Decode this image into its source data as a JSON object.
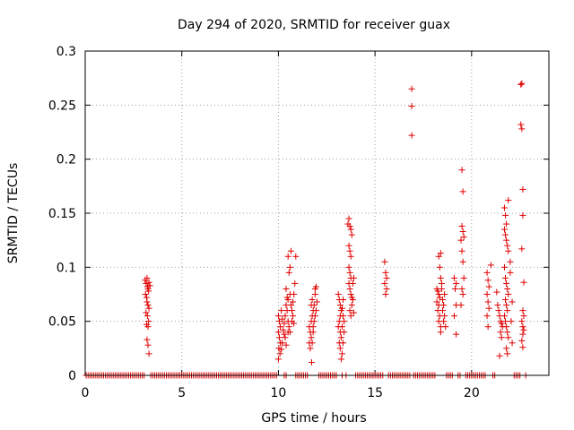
{
  "chart_data": {
    "type": "scatter",
    "title": "Day 294 of 2020, SRMTID for receiver guax",
    "xlabel": "GPS time / hours",
    "ylabel": "SRMTID / TECUs",
    "xlim": [
      0,
      24
    ],
    "ylim": [
      0,
      0.3
    ],
    "xticks": [
      0,
      5,
      10,
      15,
      20
    ],
    "xtick_labels": [
      "0",
      "5",
      "10",
      "15",
      "20"
    ],
    "yticks": [
      0,
      0.05,
      0.1,
      0.15,
      0.2,
      0.25,
      0.3
    ],
    "ytick_labels": [
      "0",
      "0.05",
      "0.1",
      "0.15",
      "0.2",
      "0.25",
      "0.3"
    ],
    "grid": true,
    "marker": "+",
    "color": "#e00000",
    "series": [
      {
        "name": "SRMTID",
        "points": [
          [
            3.1,
            0.088
          ],
          [
            3.15,
            0.085
          ],
          [
            3.2,
            0.09
          ],
          [
            3.22,
            0.082
          ],
          [
            3.25,
            0.08
          ],
          [
            3.3,
            0.086
          ],
          [
            3.35,
            0.083
          ],
          [
            3.12,
            0.075
          ],
          [
            3.18,
            0.072
          ],
          [
            3.28,
            0.078
          ],
          [
            3.2,
            0.068
          ],
          [
            3.25,
            0.065
          ],
          [
            3.3,
            0.062
          ],
          [
            3.15,
            0.058
          ],
          [
            3.22,
            0.055
          ],
          [
            3.28,
            0.05
          ],
          [
            3.18,
            0.047
          ],
          [
            3.25,
            0.045
          ],
          [
            3.2,
            0.033
          ],
          [
            3.25,
            0.028
          ],
          [
            3.3,
            0.02
          ],
          [
            10.0,
            0.055
          ],
          [
            10.05,
            0.05
          ],
          [
            10.1,
            0.045
          ],
          [
            10.0,
            0.04
          ],
          [
            10.05,
            0.035
          ],
          [
            10.1,
            0.03
          ],
          [
            10.02,
            0.025
          ],
          [
            10.08,
            0.02
          ],
          [
            10.0,
            0.015
          ],
          [
            10.15,
            0.06
          ],
          [
            10.2,
            0.052
          ],
          [
            10.25,
            0.042
          ],
          [
            10.3,
            0.038
          ],
          [
            10.2,
            0.03
          ],
          [
            10.15,
            0.024
          ],
          [
            10.3,
            0.048
          ],
          [
            10.35,
            0.055
          ],
          [
            10.4,
            0.065
          ],
          [
            10.45,
            0.072
          ],
          [
            10.4,
            0.08
          ],
          [
            10.5,
            0.07
          ],
          [
            10.45,
            0.06
          ],
          [
            10.5,
            0.05
          ],
          [
            10.55,
            0.045
          ],
          [
            10.35,
            0.035
          ],
          [
            10.4,
            0.028
          ],
          [
            10.5,
            0.04
          ],
          [
            10.55,
            0.095
          ],
          [
            10.6,
            0.1
          ],
          [
            10.5,
            0.11
          ],
          [
            10.65,
            0.115
          ],
          [
            10.6,
            0.075
          ],
          [
            10.65,
            0.065
          ],
          [
            10.7,
            0.06
          ],
          [
            10.75,
            0.055
          ],
          [
            10.7,
            0.05
          ],
          [
            10.8,
            0.048
          ],
          [
            10.6,
            0.04
          ],
          [
            10.75,
            0.068
          ],
          [
            10.8,
            0.075
          ],
          [
            10.85,
            0.085
          ],
          [
            10.9,
            0.11
          ],
          [
            11.6,
            0.045
          ],
          [
            11.65,
            0.04
          ],
          [
            11.7,
            0.035
          ],
          [
            11.6,
            0.03
          ],
          [
            11.65,
            0.025
          ],
          [
            11.7,
            0.05
          ],
          [
            11.75,
            0.055
          ],
          [
            11.8,
            0.06
          ],
          [
            11.7,
            0.065
          ],
          [
            11.75,
            0.07
          ],
          [
            11.8,
            0.045
          ],
          [
            11.85,
            0.05
          ],
          [
            11.9,
            0.055
          ],
          [
            11.85,
            0.065
          ],
          [
            11.9,
            0.075
          ],
          [
            11.95,
            0.082
          ],
          [
            11.9,
            0.08
          ],
          [
            11.8,
            0.04
          ],
          [
            11.75,
            0.03
          ],
          [
            11.72,
            0.012
          ],
          [
            11.95,
            0.06
          ],
          [
            12.0,
            0.068
          ],
          [
            13.1,
            0.075
          ],
          [
            13.15,
            0.07
          ],
          [
            13.2,
            0.065
          ],
          [
            13.25,
            0.06
          ],
          [
            13.2,
            0.055
          ],
          [
            13.15,
            0.05
          ],
          [
            13.1,
            0.045
          ],
          [
            13.2,
            0.04
          ],
          [
            13.25,
            0.035
          ],
          [
            13.15,
            0.03
          ],
          [
            13.2,
            0.025
          ],
          [
            13.3,
            0.02
          ],
          [
            13.25,
            0.015
          ],
          [
            13.3,
            0.045
          ],
          [
            13.35,
            0.055
          ],
          [
            13.3,
            0.062
          ],
          [
            13.35,
            0.07
          ],
          [
            13.4,
            0.04
          ],
          [
            13.35,
            0.03
          ],
          [
            13.4,
            0.05
          ],
          [
            13.6,
            0.14
          ],
          [
            13.65,
            0.145
          ],
          [
            13.7,
            0.138
          ],
          [
            13.75,
            0.135
          ],
          [
            13.65,
            0.12
          ],
          [
            13.7,
            0.115
          ],
          [
            13.75,
            0.11
          ],
          [
            13.65,
            0.1
          ],
          [
            13.7,
            0.095
          ],
          [
            13.75,
            0.09
          ],
          [
            13.65,
            0.085
          ],
          [
            13.7,
            0.08
          ],
          [
            13.75,
            0.075
          ],
          [
            13.8,
            0.072
          ],
          [
            13.85,
            0.07
          ],
          [
            13.8,
            0.065
          ],
          [
            13.7,
            0.06
          ],
          [
            13.75,
            0.055
          ],
          [
            13.9,
            0.058
          ],
          [
            13.85,
            0.085
          ],
          [
            13.9,
            0.09
          ],
          [
            13.8,
            0.13
          ],
          [
            15.5,
            0.105
          ],
          [
            15.55,
            0.095
          ],
          [
            15.6,
            0.09
          ],
          [
            15.5,
            0.085
          ],
          [
            15.6,
            0.08
          ],
          [
            15.55,
            0.075
          ],
          [
            16.9,
            0.265
          ],
          [
            16.9,
            0.249
          ],
          [
            16.9,
            0.222
          ],
          [
            18.2,
            0.08
          ],
          [
            18.25,
            0.078
          ],
          [
            18.3,
            0.075
          ],
          [
            18.35,
            0.072
          ],
          [
            18.2,
            0.068
          ],
          [
            18.3,
            0.065
          ],
          [
            18.25,
            0.06
          ],
          [
            18.35,
            0.055
          ],
          [
            18.3,
            0.05
          ],
          [
            18.4,
            0.045
          ],
          [
            18.3,
            0.11
          ],
          [
            18.35,
            0.1
          ],
          [
            18.4,
            0.09
          ],
          [
            18.45,
            0.085
          ],
          [
            18.4,
            0.113
          ],
          [
            18.5,
            0.07
          ],
          [
            18.55,
            0.065
          ],
          [
            18.5,
            0.06
          ],
          [
            18.6,
            0.055
          ],
          [
            18.55,
            0.05
          ],
          [
            18.45,
            0.08
          ],
          [
            18.6,
            0.075
          ],
          [
            18.65,
            0.045
          ],
          [
            18.4,
            0.04
          ],
          [
            19.1,
            0.09
          ],
          [
            19.2,
            0.085
          ],
          [
            19.15,
            0.08
          ],
          [
            19.1,
            0.055
          ],
          [
            19.2,
            0.065
          ],
          [
            19.2,
            0.038
          ],
          [
            19.5,
            0.19
          ],
          [
            19.55,
            0.17
          ],
          [
            19.5,
            0.138
          ],
          [
            19.55,
            0.133
          ],
          [
            19.6,
            0.128
          ],
          [
            19.45,
            0.125
          ],
          [
            19.5,
            0.115
          ],
          [
            19.55,
            0.105
          ],
          [
            19.6,
            0.09
          ],
          [
            19.5,
            0.08
          ],
          [
            19.55,
            0.075
          ],
          [
            19.45,
            0.065
          ],
          [
            20.8,
            0.095
          ],
          [
            20.85,
            0.088
          ],
          [
            20.9,
            0.082
          ],
          [
            20.8,
            0.075
          ],
          [
            20.85,
            0.068
          ],
          [
            20.9,
            0.062
          ],
          [
            20.8,
            0.055
          ],
          [
            20.85,
            0.045
          ],
          [
            21.0,
            0.102
          ],
          [
            21.3,
            0.077
          ],
          [
            21.35,
            0.065
          ],
          [
            21.4,
            0.06
          ],
          [
            21.45,
            0.055
          ],
          [
            21.5,
            0.05
          ],
          [
            21.55,
            0.048
          ],
          [
            21.6,
            0.045
          ],
          [
            21.5,
            0.04
          ],
          [
            21.55,
            0.035
          ],
          [
            21.45,
            0.018
          ],
          [
            21.7,
            0.155
          ],
          [
            21.75,
            0.148
          ],
          [
            21.8,
            0.14
          ],
          [
            21.7,
            0.135
          ],
          [
            21.75,
            0.13
          ],
          [
            21.8,
            0.125
          ],
          [
            21.85,
            0.12
          ],
          [
            21.9,
            0.115
          ],
          [
            21.7,
            0.1
          ],
          [
            21.75,
            0.09
          ],
          [
            21.8,
            0.085
          ],
          [
            21.85,
            0.08
          ],
          [
            21.9,
            0.075
          ],
          [
            21.75,
            0.07
          ],
          [
            21.8,
            0.065
          ],
          [
            21.85,
            0.06
          ],
          [
            21.7,
            0.055
          ],
          [
            21.75,
            0.05
          ],
          [
            21.8,
            0.045
          ],
          [
            21.85,
            0.04
          ],
          [
            21.9,
            0.035
          ],
          [
            21.8,
            0.025
          ],
          [
            21.85,
            0.02
          ],
          [
            21.9,
            0.162
          ],
          [
            22.0,
            0.105
          ],
          [
            22.0,
            0.095
          ],
          [
            22.1,
            0.068
          ],
          [
            22.05,
            0.05
          ],
          [
            22.1,
            0.03
          ],
          [
            22.55,
            0.269
          ],
          [
            22.6,
            0.27
          ],
          [
            22.55,
            0.232
          ],
          [
            22.6,
            0.228
          ],
          [
            22.65,
            0.172
          ],
          [
            22.65,
            0.148
          ],
          [
            22.6,
            0.117
          ],
          [
            22.7,
            0.086
          ],
          [
            22.65,
            0.06
          ],
          [
            22.7,
            0.055
          ],
          [
            22.6,
            0.05
          ],
          [
            22.65,
            0.045
          ],
          [
            22.7,
            0.042
          ],
          [
            22.65,
            0.038
          ],
          [
            22.6,
            0.032
          ],
          [
            22.65,
            0.026
          ]
        ],
        "zero_x": [
          0.05,
          0.15,
          0.25,
          0.35,
          0.45,
          0.55,
          0.65,
          0.75,
          0.85,
          0.95,
          1.05,
          1.15,
          1.25,
          1.35,
          1.45,
          1.55,
          1.65,
          1.75,
          1.85,
          1.95,
          2.05,
          2.15,
          2.25,
          2.35,
          2.45,
          2.55,
          2.65,
          2.75,
          2.85,
          2.95,
          3.05,
          3.4,
          3.5,
          3.6,
          3.7,
          3.8,
          3.9,
          4.0,
          4.1,
          4.2,
          4.3,
          4.4,
          4.5,
          4.6,
          4.7,
          4.8,
          4.9,
          5.0,
          5.1,
          5.2,
          5.3,
          5.4,
          5.5,
          5.6,
          5.7,
          5.8,
          5.9,
          6.0,
          6.1,
          6.2,
          6.3,
          6.4,
          6.5,
          6.6,
          6.7,
          6.8,
          6.9,
          7.0,
          7.1,
          7.2,
          7.3,
          7.4,
          7.5,
          7.6,
          7.7,
          7.8,
          7.9,
          8.0,
          8.1,
          8.2,
          8.3,
          8.4,
          8.5,
          8.6,
          8.7,
          8.8,
          8.9,
          9.0,
          9.1,
          9.2,
          9.3,
          9.4,
          9.5,
          9.6,
          9.7,
          9.8,
          9.9,
          10.3,
          10.4,
          10.9,
          11.0,
          11.1,
          11.2,
          11.3,
          11.4,
          11.5,
          12.1,
          12.2,
          12.3,
          12.4,
          12.5,
          12.6,
          12.7,
          12.8,
          12.9,
          13.0,
          13.3,
          13.5,
          14.0,
          14.1,
          14.2,
          14.3,
          14.4,
          14.5,
          14.6,
          14.7,
          14.8,
          14.9,
          15.0,
          15.1,
          15.2,
          15.3,
          15.4,
          15.7,
          15.8,
          15.9,
          16.0,
          16.1,
          16.2,
          16.3,
          16.4,
          16.5,
          16.6,
          16.7,
          16.8,
          17.0,
          17.1,
          17.2,
          17.3,
          17.4,
          17.5,
          17.6,
          17.7,
          17.8,
          17.9,
          18.0,
          18.1,
          18.7,
          18.8,
          18.9,
          19.0,
          19.3,
          19.4,
          19.7,
          19.8,
          19.9,
          20.0,
          20.1,
          20.2,
          20.3,
          20.4,
          20.5,
          20.6,
          20.7,
          21.1,
          21.2,
          22.2,
          22.3,
          22.4,
          22.5,
          22.8
        ]
      }
    ]
  }
}
